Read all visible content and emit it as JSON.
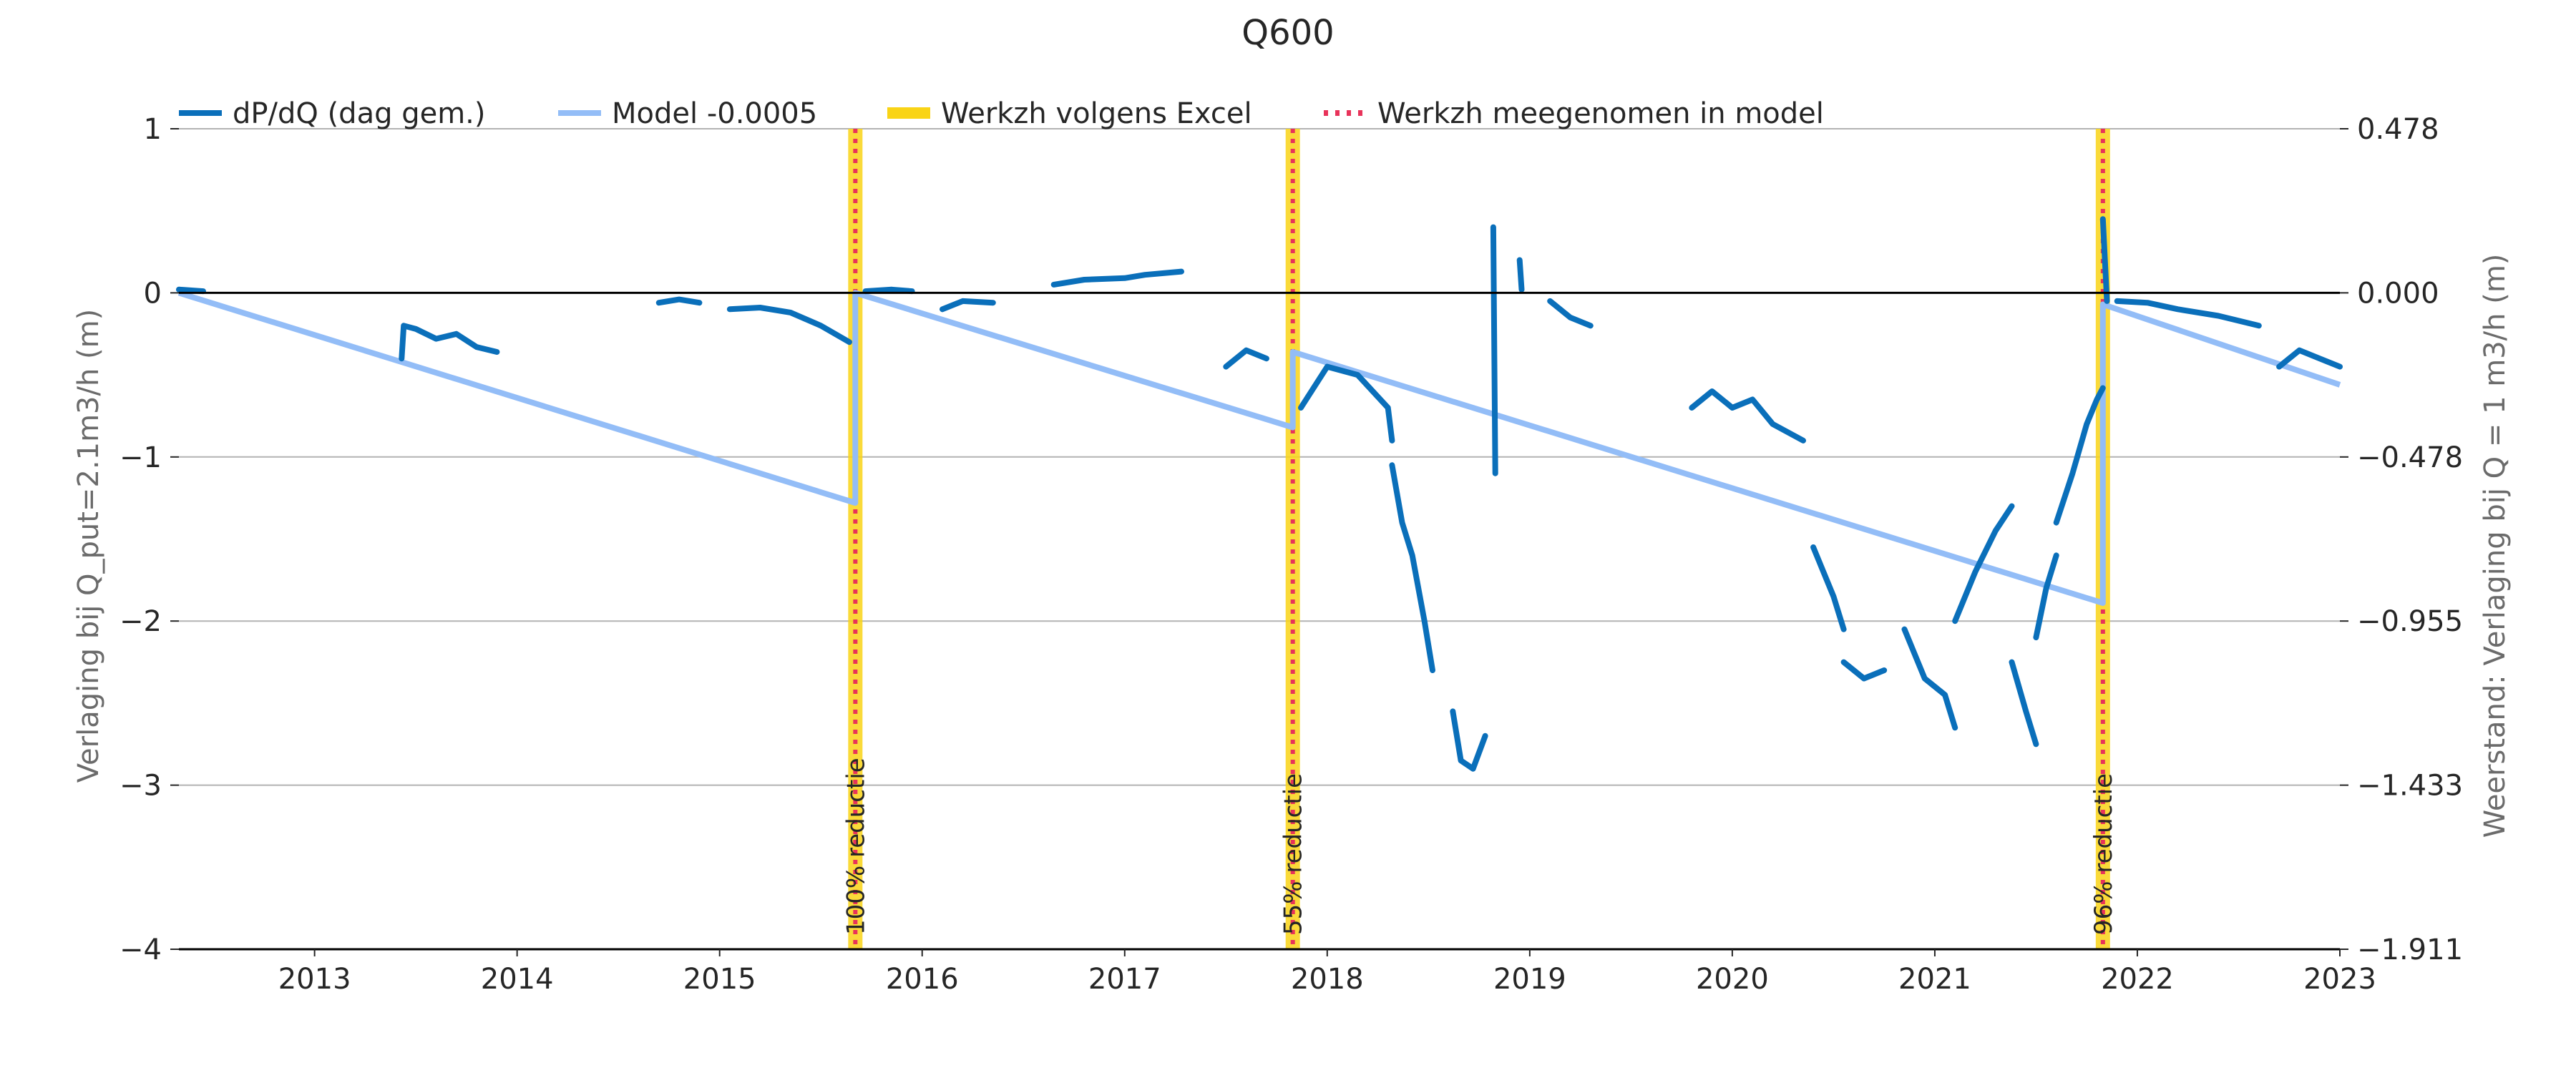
{
  "chart_data": {
    "type": "line",
    "title": "Q600",
    "ylabel_left": "Verlaging bij Q_put=2.1m3/h (m)",
    "ylabel_right": "Weerstand: Verlaging bij Q = 1 m3/h (m)",
    "xlim": [
      2012.33,
      2023.0
    ],
    "ylim": [
      -4,
      1
    ],
    "grid": "horizontal",
    "legend_placement": "top",
    "x_ticks": [
      2013,
      2014,
      2015,
      2016,
      2017,
      2018,
      2019,
      2020,
      2021,
      2022,
      2023
    ],
    "x_tick_labels": [
      "2013",
      "2014",
      "2015",
      "2016",
      "2017",
      "2018",
      "2019",
      "2020",
      "2021",
      "2022",
      "2023"
    ],
    "y_ticks_left": [
      1,
      0,
      -1,
      -2,
      -3,
      -4
    ],
    "y_tick_labels_left": [
      "1",
      "0",
      "−1",
      "−2",
      "−3",
      "−4"
    ],
    "y_tick_labels_right": [
      "0.478",
      "0.000",
      "−0.478",
      "−0.955",
      "−1.433",
      "−1.911"
    ],
    "legend": [
      {
        "label": "dP/dQ (dag gem.)",
        "color": "#0a6fba",
        "style": "solid"
      },
      {
        "label": "Model -0.0005",
        "color": "#93bdf7",
        "style": "solid"
      },
      {
        "label": "Werkzh volgens Excel",
        "color": "#f9d416",
        "style": "thick"
      },
      {
        "label": "Werkzh meegenomen in model",
        "color": "#e8335a",
        "style": "dotted"
      }
    ],
    "maintenance": [
      {
        "x": 2015.67,
        "label": "100% reductie"
      },
      {
        "x": 2017.83,
        "label": "55% reductie"
      },
      {
        "x": 2021.83,
        "label": "96% reductie"
      }
    ],
    "series": [
      {
        "name": "Model -0.0005",
        "color": "#93bdf7",
        "points": [
          [
            2012.33,
            0.0
          ],
          [
            2015.67,
            -1.28
          ],
          [
            2015.67,
            0.0
          ],
          [
            2017.83,
            -0.82
          ],
          [
            2017.83,
            -0.36
          ],
          [
            2021.83,
            -1.89
          ],
          [
            2021.83,
            -0.07
          ],
          [
            2023.0,
            -0.56
          ]
        ]
      },
      {
        "name": "dP/dQ (dag gem.)",
        "color": "#0a6fba",
        "segments": [
          [
            [
              2012.33,
              0.02
            ],
            [
              2012.45,
              0.01
            ]
          ],
          [
            [
              2013.43,
              -0.4
            ],
            [
              2013.44,
              -0.2
            ],
            [
              2013.5,
              -0.22
            ],
            [
              2013.6,
              -0.28
            ],
            [
              2013.7,
              -0.25
            ],
            [
              2013.8,
              -0.33
            ],
            [
              2013.9,
              -0.36
            ]
          ],
          [
            [
              2014.7,
              -0.06
            ],
            [
              2014.8,
              -0.04
            ],
            [
              2014.9,
              -0.06
            ]
          ],
          [
            [
              2015.05,
              -0.1
            ],
            [
              2015.2,
              -0.09
            ],
            [
              2015.35,
              -0.12
            ],
            [
              2015.5,
              -0.2
            ],
            [
              2015.64,
              -0.3
            ]
          ],
          [
            [
              2015.72,
              0.01
            ],
            [
              2015.85,
              0.02
            ],
            [
              2015.95,
              0.01
            ]
          ],
          [
            [
              2016.1,
              -0.1
            ],
            [
              2016.2,
              -0.05
            ],
            [
              2016.35,
              -0.06
            ]
          ],
          [
            [
              2016.65,
              0.05
            ],
            [
              2016.8,
              0.08
            ],
            [
              2017.0,
              0.09
            ],
            [
              2017.1,
              0.11
            ],
            [
              2017.28,
              0.13
            ]
          ],
          [
            [
              2017.5,
              -0.45
            ],
            [
              2017.6,
              -0.35
            ],
            [
              2017.7,
              -0.4
            ]
          ],
          [
            [
              2017.87,
              -0.7
            ],
            [
              2018.0,
              -0.45
            ],
            [
              2018.15,
              -0.5
            ],
            [
              2018.3,
              -0.7
            ],
            [
              2018.32,
              -0.9
            ]
          ],
          [
            [
              2018.32,
              -1.05
            ],
            [
              2018.37,
              -1.4
            ],
            [
              2018.42,
              -1.6
            ],
            [
              2018.48,
              -2.0
            ],
            [
              2018.52,
              -2.3
            ]
          ],
          [
            [
              2018.62,
              -2.55
            ],
            [
              2018.66,
              -2.85
            ],
            [
              2018.72,
              -2.9
            ],
            [
              2018.78,
              -2.7
            ]
          ],
          [
            [
              2018.82,
              0.4
            ],
            [
              2018.83,
              -1.1
            ]
          ],
          [
            [
              2018.95,
              0.2
            ],
            [
              2018.96,
              0.02
            ]
          ],
          [
            [
              2019.1,
              -0.05
            ],
            [
              2019.2,
              -0.15
            ],
            [
              2019.3,
              -0.2
            ]
          ],
          [
            [
              2019.8,
              -0.7
            ],
            [
              2019.9,
              -0.6
            ],
            [
              2020.0,
              -0.7
            ],
            [
              2020.1,
              -0.65
            ],
            [
              2020.2,
              -0.8
            ],
            [
              2020.35,
              -0.9
            ]
          ],
          [
            [
              2020.4,
              -1.55
            ],
            [
              2020.5,
              -1.85
            ],
            [
              2020.55,
              -2.05
            ]
          ],
          [
            [
              2020.55,
              -2.25
            ],
            [
              2020.65,
              -2.35
            ],
            [
              2020.75,
              -2.3
            ]
          ],
          [
            [
              2020.85,
              -2.05
            ],
            [
              2020.95,
              -2.35
            ],
            [
              2021.05,
              -2.45
            ],
            [
              2021.1,
              -2.65
            ]
          ],
          [
            [
              2021.1,
              -2.0
            ],
            [
              2021.2,
              -1.7
            ],
            [
              2021.3,
              -1.45
            ],
            [
              2021.38,
              -1.3
            ]
          ],
          [
            [
              2021.38,
              -2.25
            ],
            [
              2021.45,
              -2.55
            ],
            [
              2021.5,
              -2.75
            ]
          ],
          [
            [
              2021.5,
              -2.1
            ],
            [
              2021.55,
              -1.8
            ],
            [
              2021.6,
              -1.6
            ]
          ],
          [
            [
              2021.6,
              -1.4
            ],
            [
              2021.68,
              -1.1
            ],
            [
              2021.75,
              -0.8
            ],
            [
              2021.8,
              -0.65
            ],
            [
              2021.83,
              -0.58
            ]
          ],
          [
            [
              2021.83,
              0.45
            ],
            [
              2021.85,
              -0.05
            ]
          ],
          [
            [
              2021.9,
              -0.05
            ],
            [
              2022.05,
              -0.06
            ],
            [
              2022.2,
              -0.1
            ],
            [
              2022.4,
              -0.14
            ],
            [
              2022.6,
              -0.2
            ]
          ],
          [
            [
              2022.7,
              -0.45
            ],
            [
              2022.8,
              -0.35
            ],
            [
              2022.9,
              -0.4
            ],
            [
              2023.0,
              -0.45
            ]
          ]
        ]
      }
    ]
  }
}
